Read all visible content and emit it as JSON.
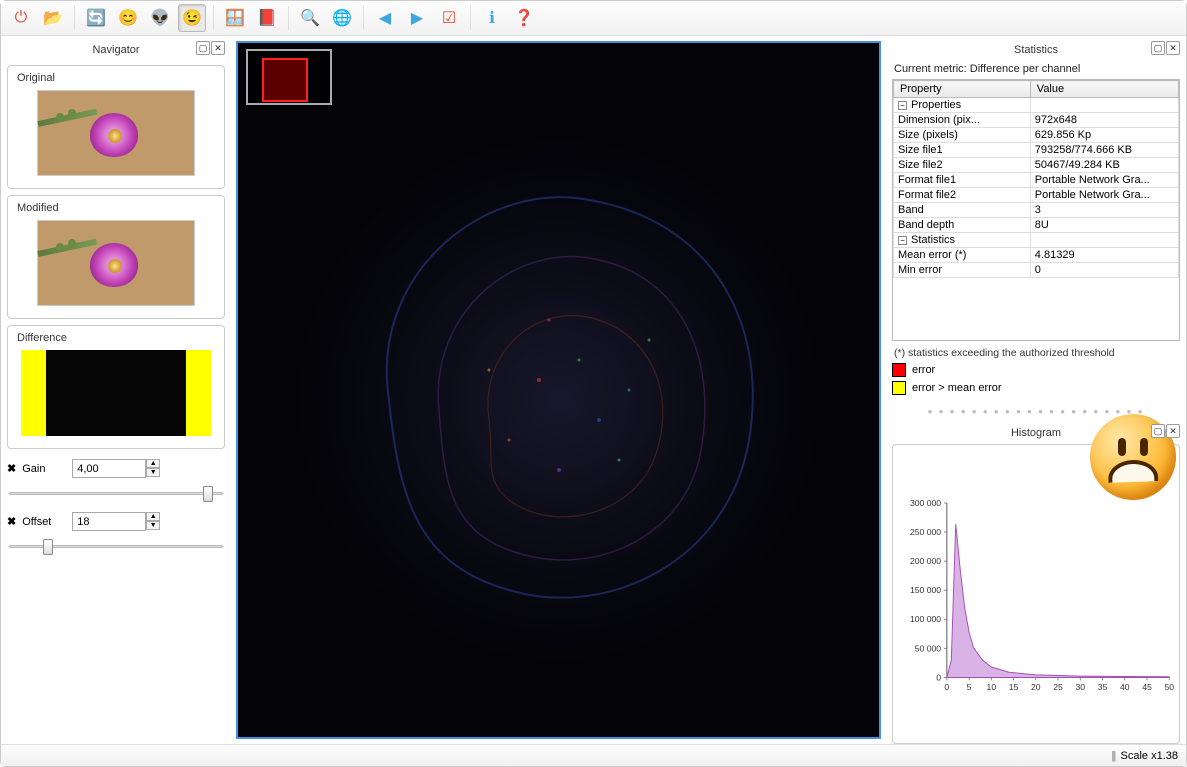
{
  "toolbar": {
    "icons": [
      "⏻",
      "📂",
      "🔄",
      "😊",
      "👽",
      "😉",
      "🪟",
      "📕",
      "🔍",
      "🌐",
      "◀",
      "▶",
      "☑",
      "ℹ",
      "❓"
    ],
    "names": [
      "power-icon",
      "open-icon",
      "refresh-icon",
      "smile-icon",
      "alien-icon",
      "wink-icon",
      "window-icon",
      "book-icon",
      "zoom-icon",
      "fit-icon",
      "back-icon",
      "forward-icon",
      "check-icon",
      "info-icon",
      "help-icon"
    ],
    "colors": [
      "#e74c3c",
      "#f5c542",
      "#3fa7e0",
      "#f5a623",
      "#8bc34a",
      "#f5a623",
      "#3fa7e0",
      "#d35400",
      "#7cb342",
      "#3fa7e0",
      "#3fa7e0",
      "#3fa7e0",
      "#e74c3c",
      "#3fa7e0",
      "#3fa7e0"
    ],
    "active_index": 5
  },
  "navigator": {
    "title": "Navigator",
    "original_label": "Original",
    "modified_label": "Modified",
    "difference_label": "Difference",
    "gain": {
      "label": "Gain",
      "value": "4,00",
      "slider_pos": 0.98
    },
    "offset": {
      "label": "Offset",
      "value": "18",
      "slider_pos": 0.18
    }
  },
  "center": {
    "border_color": "#4a90e2",
    "bg": "#030308"
  },
  "statistics": {
    "title": "Statistics",
    "metric_line": "Current metric: Difference per channel",
    "col_property": "Property",
    "col_value": "Value",
    "groups": [
      {
        "label": "Properties",
        "rows": [
          {
            "k": "Dimension (pix...",
            "v": "972x648"
          },
          {
            "k": "Size (pixels)",
            "v": "629.856 Kp"
          },
          {
            "k": "Size file1",
            "v": "793258/774.666 KB"
          },
          {
            "k": "Size file2",
            "v": "50467/49.284 KB"
          },
          {
            "k": "Format file1",
            "v": "Portable Network Gra..."
          },
          {
            "k": "Format file2",
            "v": "Portable Network Gra..."
          },
          {
            "k": "Band",
            "v": "3"
          },
          {
            "k": "Band depth",
            "v": "8U"
          }
        ]
      },
      {
        "label": "Statistics",
        "rows": [
          {
            "k": "Mean error (*)",
            "v": "4.81329"
          },
          {
            "k": "Min error",
            "v": "0"
          }
        ]
      }
    ],
    "footnote": "(*) statistics exceeding the authorized threshold",
    "legend_error": {
      "color": "#ff0000",
      "label": "error"
    },
    "legend_mean": {
      "color": "#ffff00",
      "label": "error > mean error"
    }
  },
  "histogram": {
    "title": "Histogram",
    "y_ticks": [
      "300 000",
      "250 000",
      "200 000",
      "150 000",
      "100 000",
      "50 000",
      "0"
    ],
    "x_ticks": [
      "0",
      "5",
      "10",
      "15",
      "20",
      "25",
      "30",
      "35",
      "40",
      "45",
      "50"
    ],
    "fill": "#d9b3e6",
    "stroke": "#a64db3",
    "points": [
      [
        0,
        0
      ],
      [
        1,
        0.1
      ],
      [
        2,
        0.88
      ],
      [
        3,
        0.62
      ],
      [
        4,
        0.4
      ],
      [
        5,
        0.26
      ],
      [
        6,
        0.17
      ],
      [
        8,
        0.1
      ],
      [
        10,
        0.06
      ],
      [
        14,
        0.03
      ],
      [
        20,
        0.015
      ],
      [
        30,
        0.008
      ],
      [
        50,
        0.004
      ]
    ]
  },
  "statusbar": {
    "scale": "Scale x1.38"
  }
}
